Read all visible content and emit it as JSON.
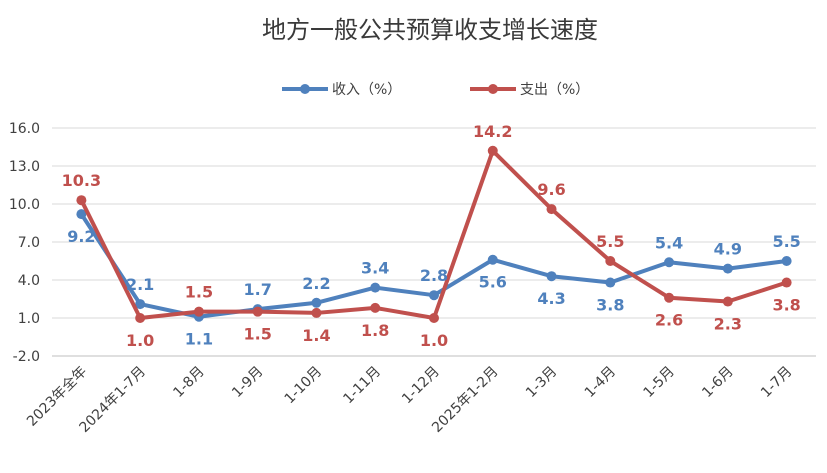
{
  "chart_data": {
    "type": "line",
    "title": "地方一般公共预算收支增长速度",
    "categories": [
      "2023年全年",
      "2024年1-7月",
      "1-8月",
      "1-9月",
      "1-10月",
      "1-11月",
      "1-12月",
      "2025年1-2月",
      "1-3月",
      "1-4月",
      "1-5月",
      "1-6月",
      "1-7月"
    ],
    "series": [
      {
        "name": "收入（%）",
        "color": "#4f81bd",
        "values": [
          9.2,
          2.1,
          1.1,
          1.7,
          2.2,
          3.4,
          2.8,
          5.6,
          4.3,
          3.8,
          5.4,
          4.9,
          5.5
        ],
        "label_pos": [
          "below",
          "above",
          "below",
          "above",
          "above",
          "above",
          "above",
          "below",
          "below",
          "below",
          "above",
          "above",
          "above"
        ]
      },
      {
        "name": "支出（%）",
        "color": "#c0504d",
        "values": [
          10.3,
          1.0,
          1.5,
          1.5,
          1.4,
          1.8,
          1.0,
          14.2,
          9.6,
          5.5,
          2.6,
          2.3,
          3.8
        ],
        "label_pos": [
          "above",
          "below",
          "above",
          "below",
          "below",
          "below",
          "below",
          "above",
          "above",
          "above",
          "below",
          "below",
          "below"
        ]
      }
    ],
    "yticks": [
      "16.0",
      "13.0",
      "10.0",
      "7.0",
      "4.0",
      "1.0",
      "-2.0"
    ],
    "ylim": [
      -2.0,
      16.0
    ],
    "legend": "top-center",
    "grid": true
  }
}
